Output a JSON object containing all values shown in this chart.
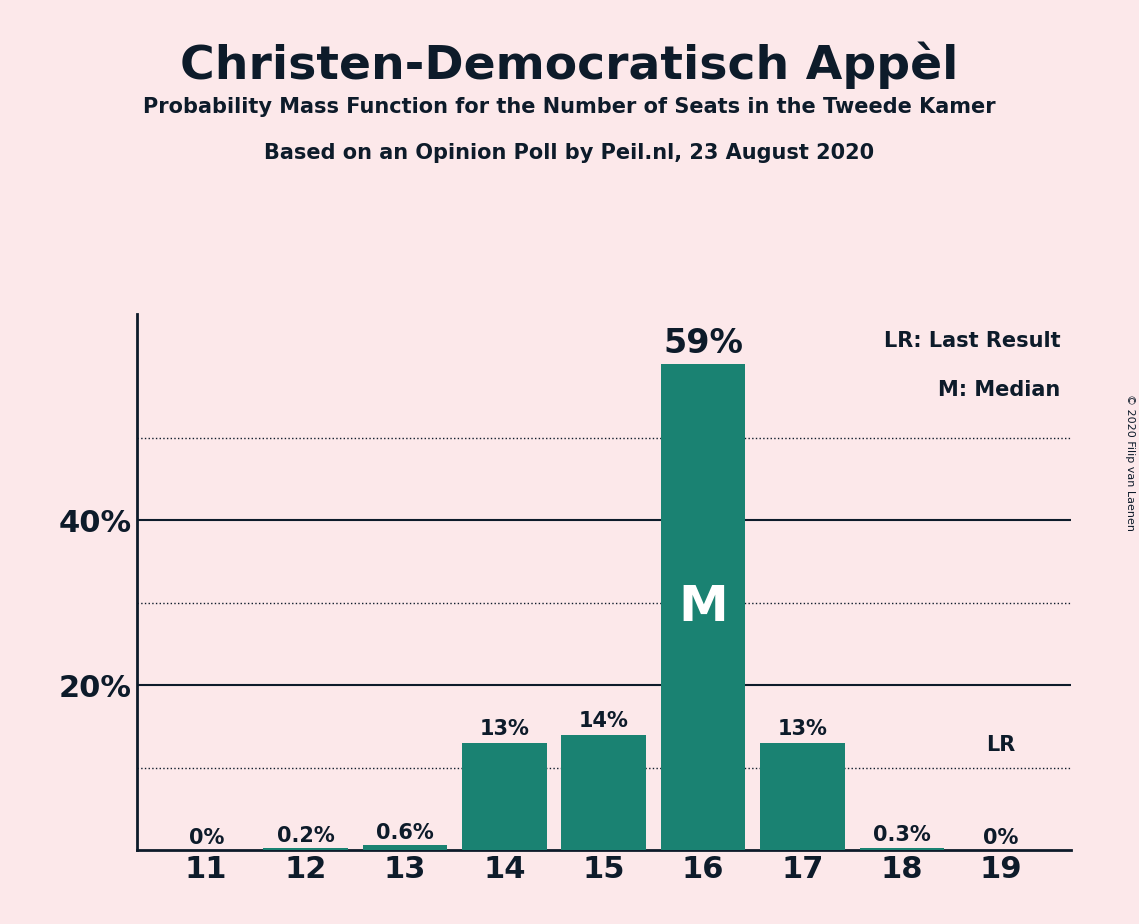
{
  "title": "Christen-Democratisch Appèl",
  "subtitle1": "Probability Mass Function for the Number of Seats in the Tweede Kamer",
  "subtitle2": "Based on an Opinion Poll by Peil.nl, 23 August 2020",
  "copyright": "© 2020 Filip van Laenen",
  "seats": [
    11,
    12,
    13,
    14,
    15,
    16,
    17,
    18,
    19
  ],
  "values": [
    0.0,
    0.2,
    0.6,
    13.0,
    14.0,
    59.0,
    13.0,
    0.3,
    0.0
  ],
  "bar_color": "#1a8272",
  "background_color": "#fce8ea",
  "axis_color": "#0d1b2a",
  "text_color": "#0d1b2a",
  "bar_label_color_dark": "#0d1b2a",
  "bar_label_color_white": "#ffffff",
  "median_seat": 16,
  "last_result_seat": 19,
  "solid_gridlines": [
    20,
    40
  ],
  "dotted_gridlines": [
    10,
    30,
    50
  ],
  "ylim": [
    0,
    65
  ],
  "ytick_labels": [
    "20%",
    "40%"
  ],
  "ytick_values": [
    20,
    40
  ],
  "legend_lr": "LR: Last Result",
  "legend_m": "M: Median"
}
